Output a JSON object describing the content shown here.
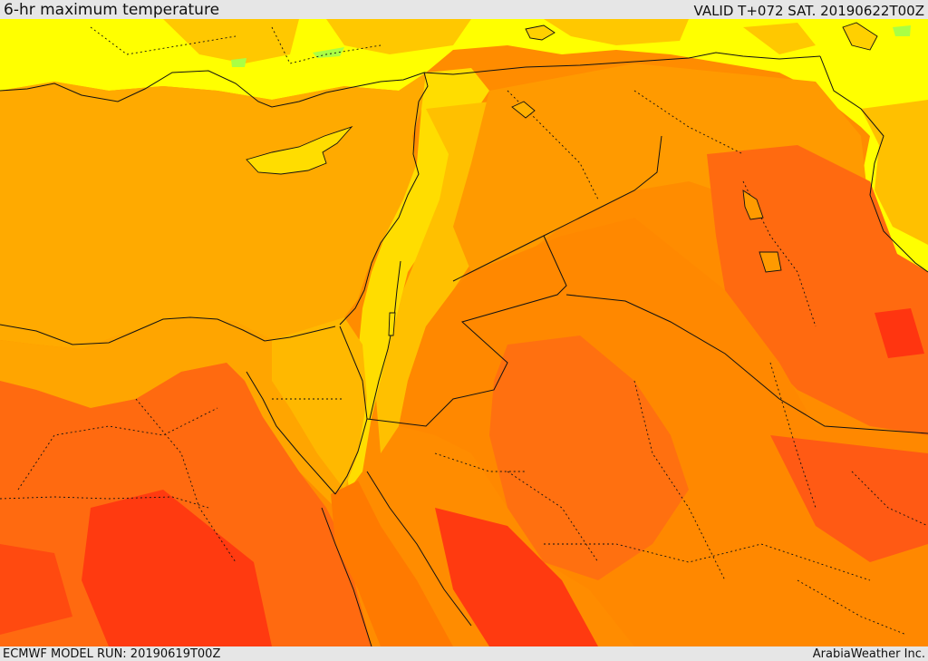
{
  "header": {
    "title": "6-hr maximum temperature",
    "valid": "VALID T+072 SAT. 20190622T00Z"
  },
  "footer": {
    "model_run": "ECMWF MODEL RUN: 20190619T00Z",
    "credit": "ArabiaWeather Inc."
  },
  "colors": {
    "yellow": "#ffff00",
    "yellow_light": "#fdf200",
    "amber": "#ffc000",
    "orange_light": "#ffb000",
    "orange": "#ff9a00",
    "orange_deep": "#ff7f00",
    "red_orange": "#ff5a1a",
    "red": "#ff3510",
    "green_hint": "#aaff44",
    "border": "#111111"
  }
}
